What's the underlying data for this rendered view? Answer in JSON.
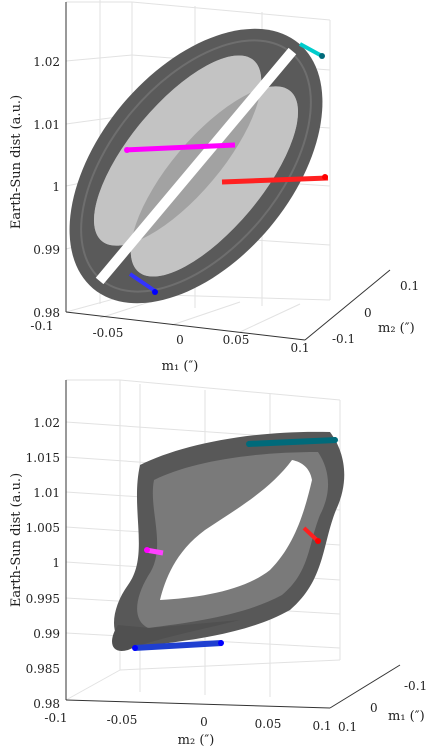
{
  "chart_data": [
    {
      "type": "scatter3d",
      "title": "",
      "xlabel": "m₁ (″)",
      "ylabel": "m₂ (″)",
      "zlabel": "Earth-Sun dist (a.u.)",
      "xlim": [
        -0.1,
        0.1
      ],
      "ylim": [
        -0.1,
        0.1
      ],
      "zlim": [
        0.98,
        1.02
      ],
      "x_ticks": [
        "-0.1",
        "-0.05",
        "0",
        "0.05",
        "0.1"
      ],
      "y_ticks": [
        "-0.1",
        "0",
        "0.1"
      ],
      "z_ticks": [
        "0.98",
        "0.99",
        "1",
        "1.01",
        "1.02"
      ],
      "grid": true,
      "surface_color": "#555555",
      "series": [
        {
          "color": "#00cccc",
          "points": [
            [
              0.04,
              0.05,
              1.02
            ],
            [
              0.05,
              0.06,
              1.019
            ],
            [
              0.03,
              0.05,
              1.0205
            ]
          ]
        },
        {
          "color": "#ff00ff",
          "points": [
            [
              -0.09,
              0.02,
              1.007
            ],
            [
              -0.07,
              0.01,
              1.006
            ],
            [
              -0.05,
              0.0,
              1.006
            ]
          ]
        },
        {
          "color": "#ff0000",
          "points": [
            [
              0.02,
              -0.01,
              0.9995
            ],
            [
              0.05,
              -0.02,
              0.9995
            ],
            [
              0.08,
              -0.03,
              1.0
            ]
          ]
        },
        {
          "color": "#0000ff",
          "points": [
            [
              -0.06,
              -0.05,
              0.9835
            ],
            [
              -0.05,
              -0.05,
              0.983
            ]
          ]
        }
      ]
    },
    {
      "type": "scatter3d",
      "title": "",
      "xlabel": "m₂ (″)",
      "ylabel": "m₁ (″)",
      "zlabel": "Earth-Sun dist (a.u.)",
      "xlim": [
        -0.1,
        0.1
      ],
      "ylim": [
        -0.1,
        0.1
      ],
      "zlim": [
        0.98,
        1.02
      ],
      "x_ticks": [
        "-0.1",
        "-0.05",
        "0",
        "0.05",
        "0.1"
      ],
      "y_ticks": [
        "-0.1",
        "0",
        "0.1"
      ],
      "z_ticks": [
        "0.98",
        "0.985",
        "0.99",
        "0.995",
        "1",
        "1.005",
        "1.01",
        "1.015",
        "1.02"
      ],
      "grid": true,
      "surface_color": "#555555",
      "series": [
        {
          "color": "#006a7a",
          "points": [
            [
              0.0,
              0.0,
              1.0165
            ],
            [
              0.05,
              0.0,
              1.017
            ],
            [
              0.1,
              0.0,
              1.017
            ]
          ]
        },
        {
          "color": "#ff00ff",
          "points": [
            [
              -0.05,
              0.0,
              1.0005
            ],
            [
              -0.04,
              0.0,
              1.0005
            ]
          ]
        },
        {
          "color": "#ff0000",
          "points": [
            [
              0.09,
              0.0,
              1.004
            ],
            [
              0.095,
              0.0,
              1.0035
            ]
          ]
        },
        {
          "color": "#0000ff",
          "points": [
            [
              -0.05,
              0.0,
              0.9872
            ],
            [
              0.0,
              0.0,
              0.9872
            ],
            [
              0.02,
              0.0,
              0.9875
            ]
          ]
        }
      ]
    }
  ]
}
